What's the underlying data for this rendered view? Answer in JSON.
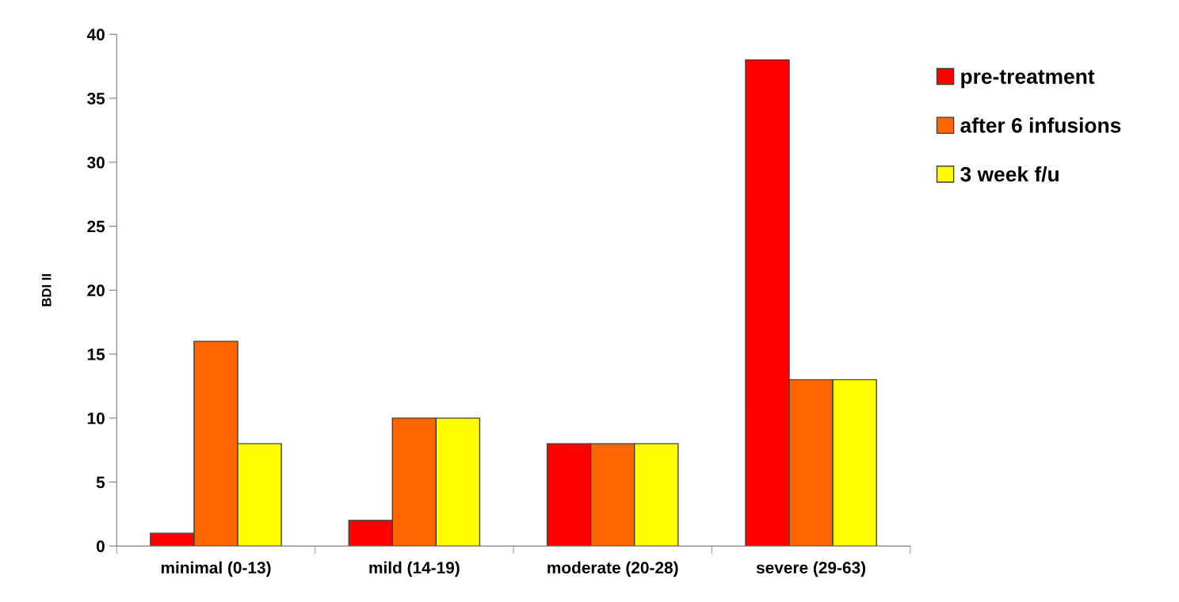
{
  "chart_data": {
    "type": "bar",
    "ylabel": "BDI II",
    "categories": [
      "minimal (0-13)",
      "mild (14-19)",
      "moderate (20-28)",
      "severe (29-63)"
    ],
    "series": [
      {
        "name": "pre-treatment",
        "color": "#ff0000",
        "values": [
          1,
          2,
          8,
          38
        ]
      },
      {
        "name": "after 6 infusions",
        "color": "#ff6600",
        "values": [
          16,
          10,
          8,
          13
        ]
      },
      {
        "name": "3 week f/u",
        "color": "#ffff00",
        "values": [
          8,
          10,
          8,
          13
        ]
      }
    ],
    "ylim": [
      0,
      40
    ],
    "yticks": [
      0,
      5,
      10,
      15,
      20,
      25,
      30,
      35,
      40
    ],
    "grid": false,
    "legend": "top right"
  }
}
